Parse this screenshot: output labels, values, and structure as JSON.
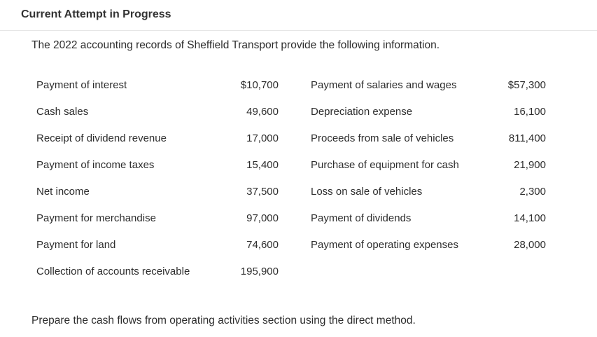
{
  "header": {
    "title": "Current Attempt in Progress"
  },
  "problem": {
    "intro": "The 2022 accounting records of Sheffield Transport provide the following information.",
    "rows": [
      {
        "left_label": "Payment of interest",
        "left_value": "$10,700",
        "right_label": "Payment of salaries and wages",
        "right_value": "$57,300"
      },
      {
        "left_label": "Cash sales",
        "left_value": "49,600",
        "right_label": "Depreciation expense",
        "right_value": "16,100"
      },
      {
        "left_label": "Receipt of dividend revenue",
        "left_value": "17,000",
        "right_label": "Proceeds from sale of vehicles",
        "right_value": "811,400"
      },
      {
        "left_label": "Payment of income taxes",
        "left_value": "15,400",
        "right_label": "Purchase of equipment for cash",
        "right_value": "21,900"
      },
      {
        "left_label": "Net income",
        "left_value": "37,500",
        "right_label": "Loss on sale of vehicles",
        "right_value": "2,300"
      },
      {
        "left_label": "Payment for merchandise",
        "left_value": "97,000",
        "right_label": "Payment of dividends",
        "right_value": "14,100"
      },
      {
        "left_label": "Payment for land",
        "left_value": "74,600",
        "right_label": "Payment of operating expenses",
        "right_value": "28,000"
      },
      {
        "left_label": "Collection of accounts receivable",
        "left_value": "195,900",
        "right_label": "",
        "right_value": ""
      }
    ],
    "instruction": "Prepare the cash flows from operating activities section using the direct method."
  }
}
